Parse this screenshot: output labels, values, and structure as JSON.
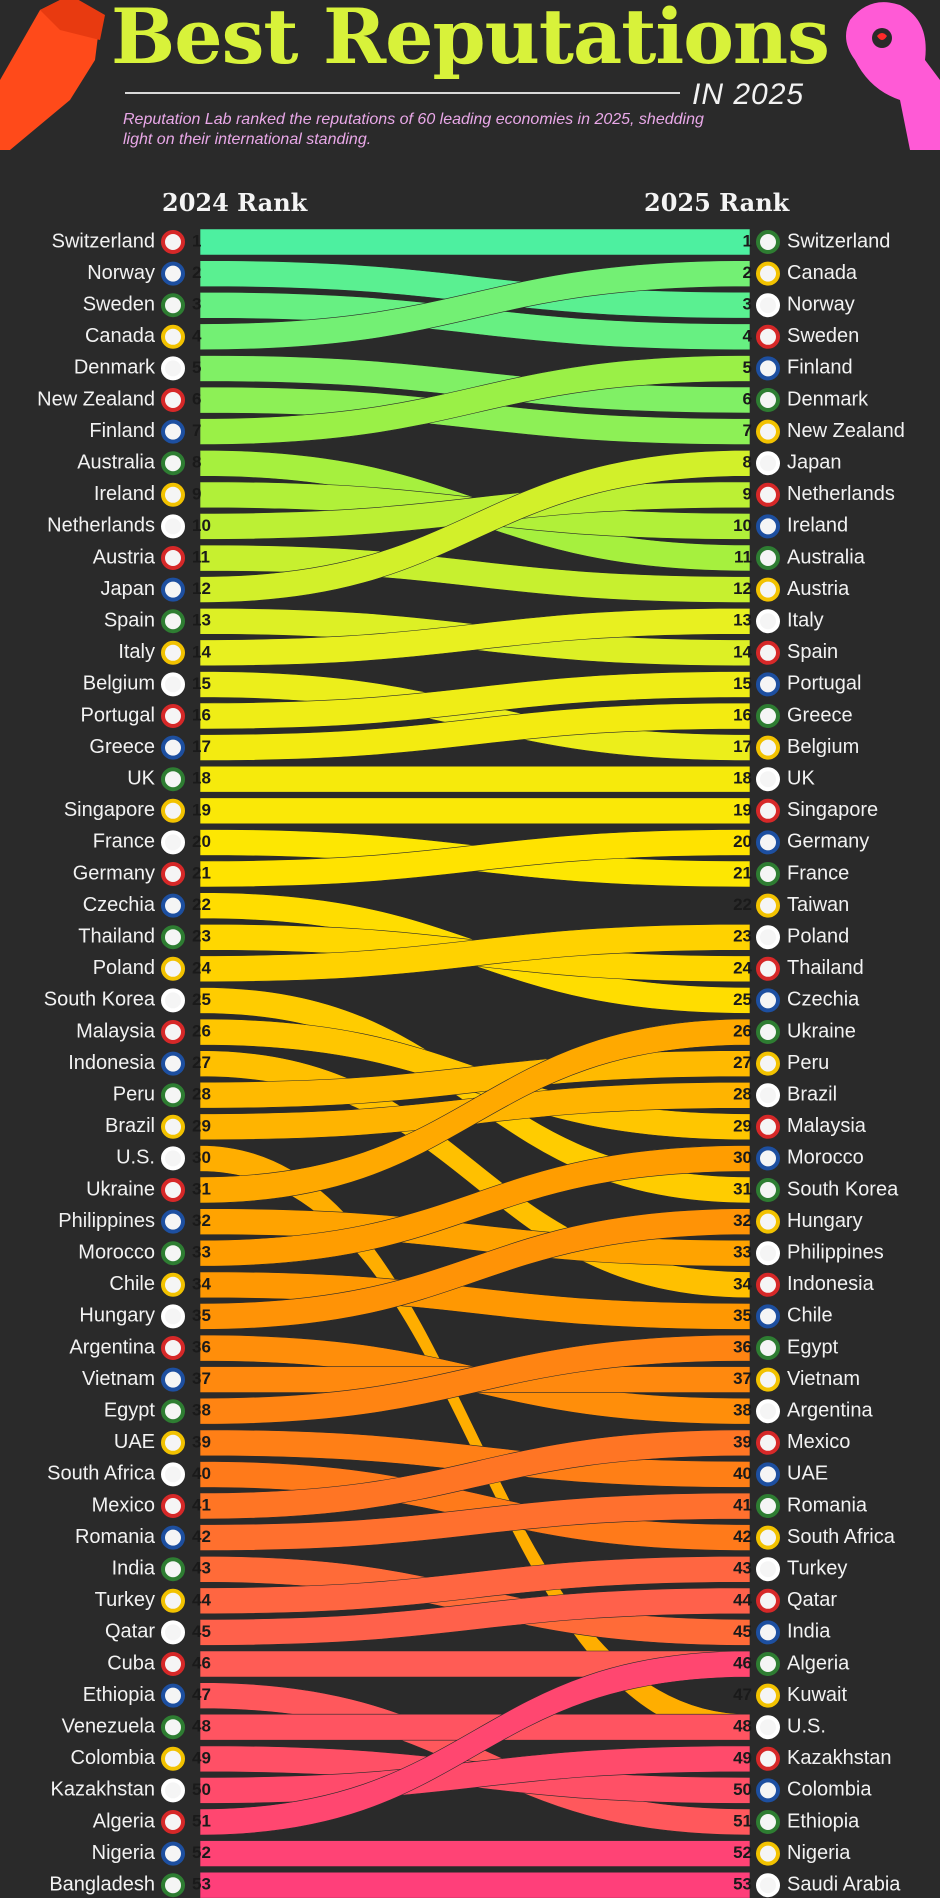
{
  "header": {
    "title": "Best Reputations",
    "year_label": "IN 2025",
    "subtitle": "Reputation Lab ranked the reputations of 60 leading economies in 2025, shedding light on their international standing."
  },
  "columns": {
    "left": "2024 Rank",
    "right": "2025 Rank"
  },
  "colors": {
    "background": "#2a2a2a",
    "title": "#d8f23a",
    "gradient": [
      "#4df0a0",
      "#a0f040",
      "#e8f020",
      "#ffe600",
      "#ffc000",
      "#ff9a00",
      "#ff7a1a",
      "#ff5a5a",
      "#ff3f7a"
    ]
  },
  "chart_data": {
    "type": "bump",
    "rank_2024": [
      "Switzerland",
      "Norway",
      "Sweden",
      "Canada",
      "Denmark",
      "New Zealand",
      "Finland",
      "Australia",
      "Ireland",
      "Netherlands",
      "Austria",
      "Japan",
      "Spain",
      "Italy",
      "Belgium",
      "Portugal",
      "Greece",
      "UK",
      "Singapore",
      "France",
      "Germany",
      "Czechia",
      "Thailand",
      "Poland",
      "South Korea",
      "Malaysia",
      "Indonesia",
      "Peru",
      "Brazil",
      "U.S.",
      "Ukraine",
      "Philippines",
      "Morocco",
      "Chile",
      "Hungary",
      "Argentina",
      "Vietnam",
      "Egypt",
      "UAE",
      "South Africa",
      "Mexico",
      "Romania",
      "India",
      "Turkey",
      "Qatar",
      "Cuba",
      "Ethiopia",
      "Venezuela",
      "Colombia",
      "Kazakhstan",
      "Algeria",
      "Nigeria",
      "Bangladesh"
    ],
    "rank_2025": [
      "Switzerland",
      "Canada",
      "Norway",
      "Sweden",
      "Finland",
      "Denmark",
      "New Zealand",
      "Japan",
      "Netherlands",
      "Ireland",
      "Australia",
      "Austria",
      "Italy",
      "Spain",
      "Portugal",
      "Greece",
      "Belgium",
      "UK",
      "Singapore",
      "Germany",
      "France",
      "Taiwan",
      "Poland",
      "Thailand",
      "Czechia",
      "Ukraine",
      "Peru",
      "Brazil",
      "Malaysia",
      "Morocco",
      "South Korea",
      "Hungary",
      "Philippines",
      "Indonesia",
      "Chile",
      "Egypt",
      "Vietnam",
      "Argentina",
      "Mexico",
      "UAE",
      "Romania",
      "South Africa",
      "Turkey",
      "Qatar",
      "India",
      "Algeria",
      "Kuwait",
      "U.S.",
      "Kazakhstan",
      "Colombia",
      "Ethiopia",
      "Nigeria",
      "Saudi Arabia"
    ]
  }
}
